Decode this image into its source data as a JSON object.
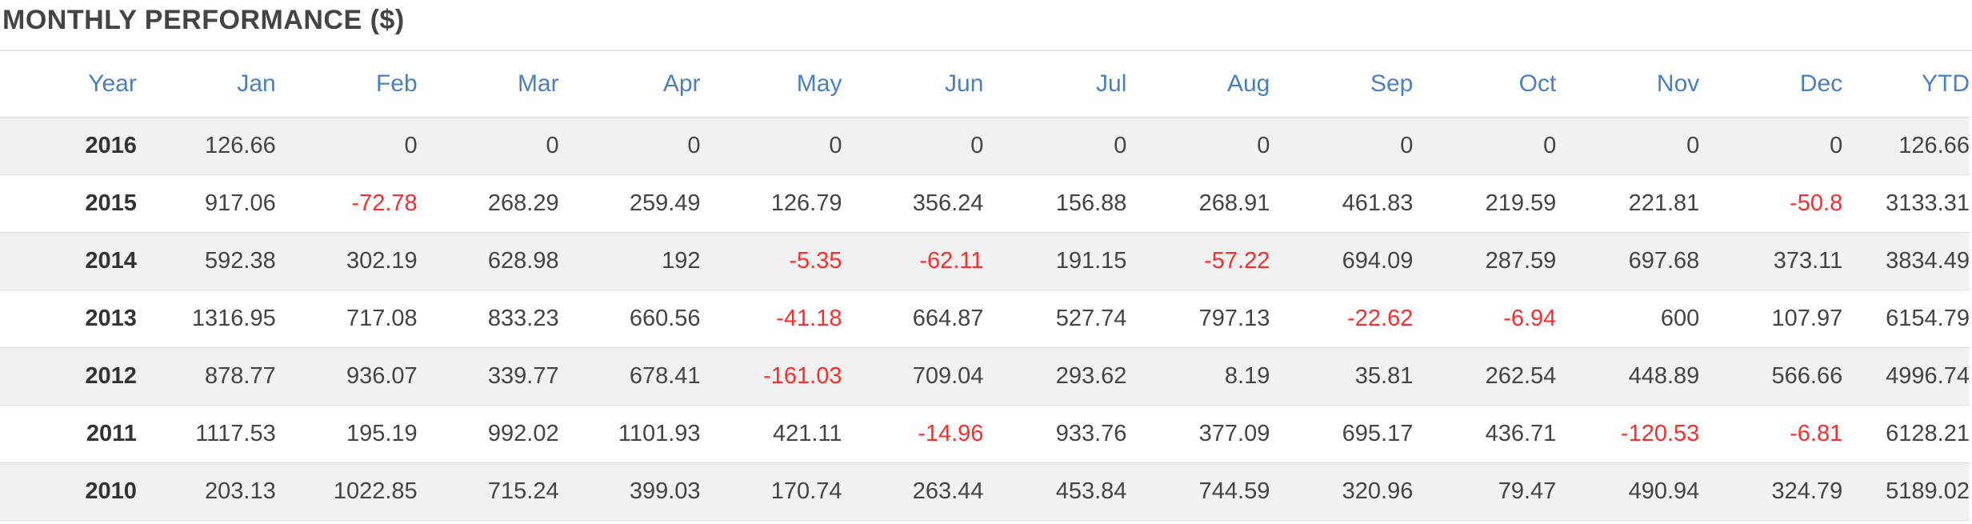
{
  "page": {
    "title": "MONTHLY PERFORMANCE ($)"
  },
  "colors": {
    "header_text": "#4a7fc1",
    "negative_value": "#ff2b2b",
    "stripe": "#f1f1f1"
  },
  "table": {
    "columns": [
      "Year",
      "Jan",
      "Feb",
      "Mar",
      "Apr",
      "May",
      "Jun",
      "Jul",
      "Aug",
      "Sep",
      "Oct",
      "Nov",
      "Dec",
      "YTD"
    ],
    "rows": [
      [
        "2016",
        "126.66",
        "0",
        "0",
        "0",
        "0",
        "0",
        "0",
        "0",
        "0",
        "0",
        "0",
        "0",
        "126.66"
      ],
      [
        "2015",
        "917.06",
        "-72.78",
        "268.29",
        "259.49",
        "126.79",
        "356.24",
        "156.88",
        "268.91",
        "461.83",
        "219.59",
        "221.81",
        "-50.8",
        "3133.31"
      ],
      [
        "2014",
        "592.38",
        "302.19",
        "628.98",
        "192",
        "-5.35",
        "-62.11",
        "191.15",
        "-57.22",
        "694.09",
        "287.59",
        "697.68",
        "373.11",
        "3834.49"
      ],
      [
        "2013",
        "1316.95",
        "717.08",
        "833.23",
        "660.56",
        "-41.18",
        "664.87",
        "527.74",
        "797.13",
        "-22.62",
        "-6.94",
        "600",
        "107.97",
        "6154.79"
      ],
      [
        "2012",
        "878.77",
        "936.07",
        "339.77",
        "678.41",
        "-161.03",
        "709.04",
        "293.62",
        "8.19",
        "35.81",
        "262.54",
        "448.89",
        "566.66",
        "4996.74"
      ],
      [
        "2011",
        "1117.53",
        "195.19",
        "992.02",
        "1101.93",
        "421.11",
        "-14.96",
        "933.76",
        "377.09",
        "695.17",
        "436.71",
        "-120.53",
        "-6.81",
        "6128.21"
      ],
      [
        "2010",
        "203.13",
        "1022.85",
        "715.24",
        "399.03",
        "170.74",
        "263.44",
        "453.84",
        "744.59",
        "320.96",
        "79.47",
        "490.94",
        "324.79",
        "5189.02"
      ]
    ]
  }
}
